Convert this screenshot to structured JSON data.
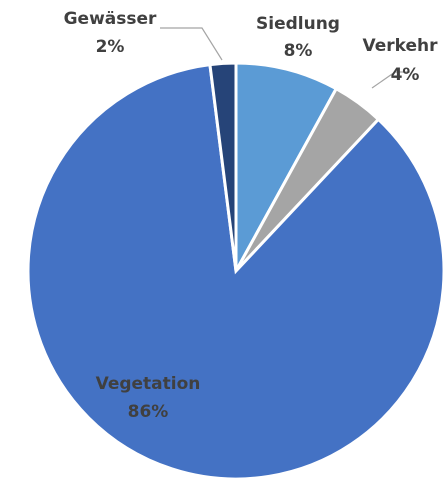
{
  "chart_data": {
    "type": "pie",
    "categories": [
      "Siedlung",
      "Verkehr",
      "Vegetation",
      "Gewässer"
    ],
    "values": [
      8,
      4,
      86,
      2
    ],
    "value_labels": [
      "8%",
      "4%",
      "86%",
      "2%"
    ],
    "colors": [
      "#5b9bd5",
      "#a5a5a5",
      "#4472c4",
      "#264478"
    ]
  }
}
